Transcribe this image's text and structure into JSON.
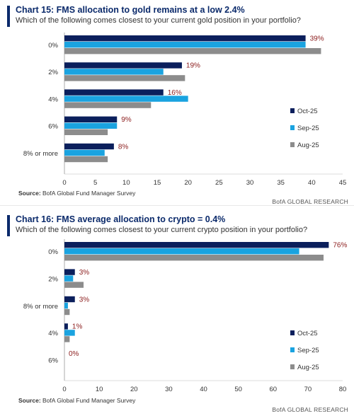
{
  "colors": {
    "title": "#0b2a6b",
    "series": [
      "#0b1f5c",
      "#1aa3e0",
      "#8c8c8c"
    ],
    "label": "#8b1c1c"
  },
  "chart_data": [
    {
      "type": "bar",
      "orientation": "horizontal",
      "title": "Chart 15: FMS allocation to gold remains at a low 2.4%",
      "subtitle": "Which of the following comes closest to your current gold position in your portfolio?",
      "categories": [
        "0%",
        "2%",
        "4%",
        "6%",
        "8% or more"
      ],
      "series": [
        {
          "name": "Oct-25",
          "values": [
            39,
            19,
            16,
            8.5,
            8
          ]
        },
        {
          "name": "Sep-25",
          "values": [
            39,
            16,
            20,
            8.5,
            6.5
          ]
        },
        {
          "name": "Aug-25",
          "values": [
            41.5,
            19.5,
            14,
            7,
            7
          ]
        }
      ],
      "data_labels": [
        "39%",
        "19%",
        "16%",
        "9%",
        "8%"
      ],
      "xlim": [
        0,
        45
      ],
      "xticks": [
        "0",
        "5",
        "10",
        "15",
        "20",
        "25",
        "30",
        "35",
        "40",
        "45"
      ],
      "legend_position": "right",
      "source_label": "Source:",
      "source_text": " BofA Global Fund Manager Survey",
      "footer": "BofA GLOBAL RESEARCH"
    },
    {
      "type": "bar",
      "orientation": "horizontal",
      "title": "Chart 16: FMS average allocation to crypto = 0.4%",
      "subtitle": "Which of the following comes closest to your current crypto position in your portfolio?",
      "categories": [
        "0%",
        "2%",
        "8% or more",
        "4%",
        "6%"
      ],
      "series": [
        {
          "name": "Oct-25",
          "values": [
            76,
            3,
            3,
            1,
            0
          ]
        },
        {
          "name": "Sep-25",
          "values": [
            67.5,
            2.5,
            1,
            3,
            0
          ]
        },
        {
          "name": "Aug-25",
          "values": [
            74.5,
            5.5,
            1.5,
            1.5,
            0
          ]
        }
      ],
      "data_labels": [
        "76%",
        "3%",
        "3%",
        "1%",
        "0%"
      ],
      "xlim": [
        0,
        80
      ],
      "xticks": [
        "0",
        "10",
        "20",
        "30",
        "40",
        "50",
        "60",
        "70",
        "80"
      ],
      "legend_position": "right",
      "source_label": "Source:",
      "source_text": " BofA Global Fund Manager Survey",
      "footer": "BofA GLOBAL RESEARCH"
    }
  ]
}
